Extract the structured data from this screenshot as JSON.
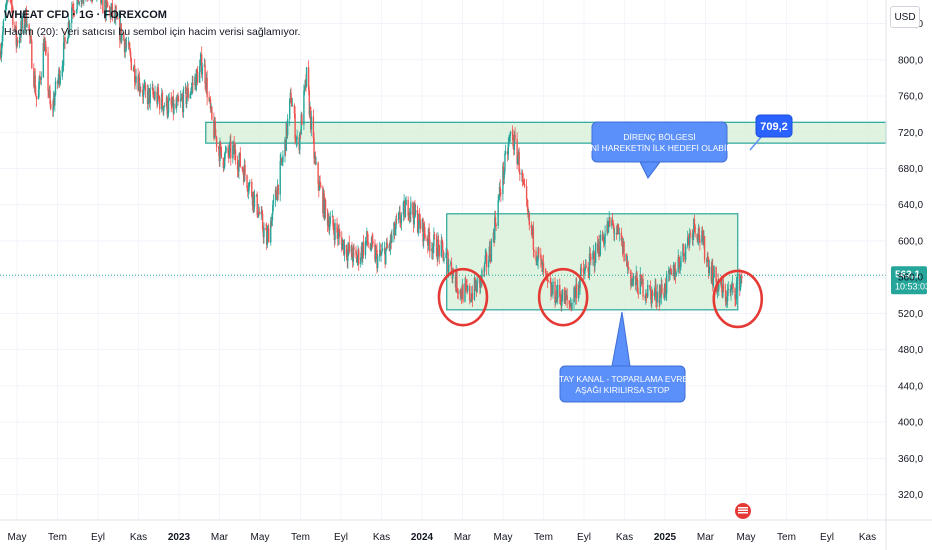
{
  "header": {
    "title": "WHEAT CFD · 1G · FOREXCOM",
    "volume_note": "Hacim (20): Veri satıcısı bu sembol için hacim verisi sağlamıyor."
  },
  "currency_label": "USD",
  "chart_data": {
    "type": "candlestick",
    "price_axis": {
      "ticks": [
        320,
        360,
        400,
        440,
        480,
        520,
        560,
        600,
        640,
        680,
        720,
        760,
        800,
        840
      ],
      "tick_labels": [
        "320,0",
        "360,0",
        "400,0",
        "440,0",
        "480,0",
        "520,0",
        "560,0",
        "600,0",
        "640,0",
        "680,0",
        "720,0",
        "760,0",
        "800,0",
        "840,0"
      ],
      "range": [
        292,
        866
      ]
    },
    "time_axis": {
      "labels": [
        "May",
        "Tem",
        "Eyl",
        "Kas",
        "2023",
        "Mar",
        "May",
        "Tem",
        "Eyl",
        "Kas",
        "2024",
        "Mar",
        "May",
        "Tem",
        "Eyl",
        "Kas",
        "2025",
        "Mar",
        "May",
        "Tem",
        "Eyl",
        "Kas"
      ],
      "range": [
        "2022-05-01",
        "2025-11-30"
      ]
    },
    "last_price": {
      "value": "562,1",
      "countdown": "10:53:03",
      "color": "#26a69a"
    },
    "resistance_zone": {
      "from": 708,
      "to": 731,
      "start": "2023-03-01",
      "end": "2025-11-30",
      "color": "#26a69a"
    },
    "range_channel": {
      "from": 524,
      "to": 630,
      "start": "2024-02-20",
      "end": "2025-04-25",
      "color": "#26a69a"
    },
    "price_tag": {
      "label": "709,2",
      "date": "2025-05-10",
      "value": 709.2
    },
    "callouts": [
      {
        "lines": [
          "DİRENÇ BÖLGESİ",
          "YENİ HAREKETİN İLK HEDEFİ OLABİLİR"
        ]
      },
      {
        "lines": [
          "YATAY KANAL - TOPARLAMA EVRESİ",
          "AŞAĞI KIRILIRSA STOP"
        ]
      }
    ],
    "circles": [
      {
        "date": "2024-03-15",
        "value": 538
      },
      {
        "date": "2024-08-10",
        "value": 538
      },
      {
        "date": "2025-04-25",
        "value": 536
      }
    ],
    "price_path": [
      [
        "2022-05-01",
        810
      ],
      [
        "2022-05-15",
        880
      ],
      [
        "2022-05-25",
        820
      ],
      [
        "2022-06-10",
        850
      ],
      [
        "2022-06-25",
        750
      ],
      [
        "2022-07-05",
        820
      ],
      [
        "2022-07-15",
        740
      ],
      [
        "2022-08-01",
        800
      ],
      [
        "2022-08-15",
        860
      ],
      [
        "2022-09-01",
        870
      ],
      [
        "2022-09-15",
        880
      ],
      [
        "2022-10-01",
        860
      ],
      [
        "2022-10-15",
        850
      ],
      [
        "2022-11-01",
        820
      ],
      [
        "2022-11-15",
        790
      ],
      [
        "2022-12-01",
        760
      ],
      [
        "2022-12-15",
        760
      ],
      [
        "2023-01-01",
        750
      ],
      [
        "2023-01-15",
        745
      ],
      [
        "2023-02-01",
        760
      ],
      [
        "2023-02-15",
        780
      ],
      [
        "2023-02-25",
        800
      ],
      [
        "2023-03-10",
        730
      ],
      [
        "2023-03-25",
        690
      ],
      [
        "2023-04-10",
        700
      ],
      [
        "2023-04-25",
        680
      ],
      [
        "2023-05-15",
        640
      ],
      [
        "2023-05-30",
        600
      ],
      [
        "2023-06-10",
        640
      ],
      [
        "2023-06-25",
        700
      ],
      [
        "2023-07-05",
        760
      ],
      [
        "2023-07-15",
        700
      ],
      [
        "2023-07-28",
        780
      ],
      [
        "2023-08-10",
        680
      ],
      [
        "2023-08-25",
        630
      ],
      [
        "2023-09-10",
        610
      ],
      [
        "2023-09-25",
        590
      ],
      [
        "2023-10-10",
        580
      ],
      [
        "2023-10-25",
        600
      ],
      [
        "2023-11-10",
        580
      ],
      [
        "2023-11-25",
        590
      ],
      [
        "2023-12-10",
        620
      ],
      [
        "2023-12-25",
        640
      ],
      [
        "2024-01-10",
        620
      ],
      [
        "2024-01-25",
        600
      ],
      [
        "2024-02-10",
        590
      ],
      [
        "2024-02-25",
        575
      ],
      [
        "2024-03-10",
        545
      ],
      [
        "2024-03-25",
        540
      ],
      [
        "2024-04-10",
        555
      ],
      [
        "2024-04-25",
        590
      ],
      [
        "2024-05-10",
        660
      ],
      [
        "2024-05-25",
        720
      ],
      [
        "2024-06-05",
        690
      ],
      [
        "2024-06-20",
        620
      ],
      [
        "2024-07-05",
        580
      ],
      [
        "2024-07-20",
        545
      ],
      [
        "2024-08-05",
        540
      ],
      [
        "2024-08-20",
        530
      ],
      [
        "2024-09-05",
        560
      ],
      [
        "2024-09-20",
        575
      ],
      [
        "2024-10-05",
        600
      ],
      [
        "2024-10-20",
        620
      ],
      [
        "2024-11-05",
        595
      ],
      [
        "2024-11-20",
        555
      ],
      [
        "2024-12-05",
        550
      ],
      [
        "2024-12-20",
        540
      ],
      [
        "2025-01-05",
        545
      ],
      [
        "2025-01-20",
        565
      ],
      [
        "2025-02-05",
        590
      ],
      [
        "2025-02-20",
        620
      ],
      [
        "2025-03-05",
        595
      ],
      [
        "2025-03-20",
        560
      ],
      [
        "2025-04-05",
        540
      ],
      [
        "2025-04-20",
        545
      ],
      [
        "2025-05-01",
        562
      ]
    ],
    "colors": {
      "up": "#26a69a",
      "down": "#ef5350",
      "zone_fill": "#d6efd6",
      "callout": "#5b8ff9",
      "circle": "#e53935"
    }
  }
}
